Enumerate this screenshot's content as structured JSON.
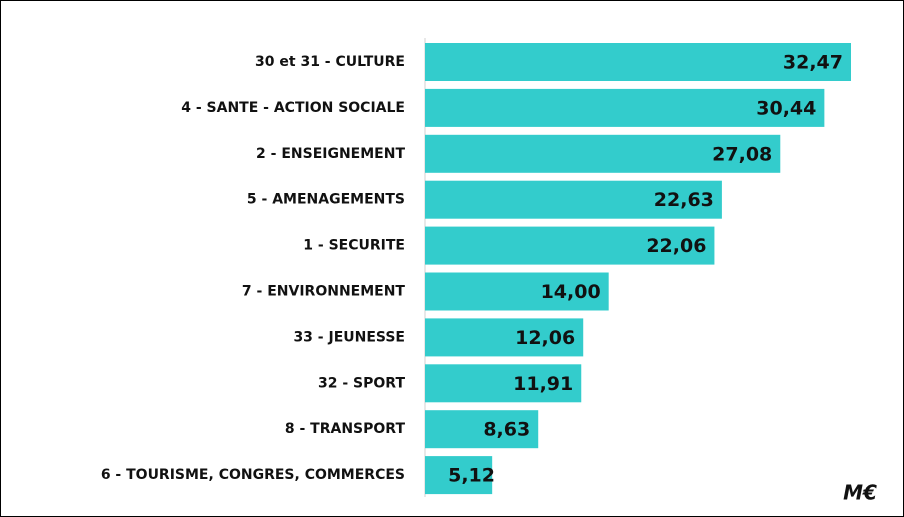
{
  "chart_data": {
    "type": "hbar",
    "categories": [
      "30 et 31 - CULTURE",
      "4 - SANTE - ACTION SOCIALE",
      "2 - ENSEIGNEMENT",
      "5 - AMENAGEMENTS",
      "1 - SECURITE",
      "7 - ENVIRONNEMENT",
      "33 - JEUNESSE",
      "32 - SPORT",
      "8 - TRANSPORT",
      "6 - TOURISME, CONGRES, COMMERCES"
    ],
    "values": [
      32.47,
      30.44,
      27.08,
      22.63,
      22.06,
      14.0,
      12.06,
      11.91,
      8.63,
      5.12
    ],
    "value_labels": [
      "32,47",
      "30,44",
      "27,08",
      "22,63",
      "22,06",
      "14,00",
      "12,06",
      "11,91",
      "8,63",
      "5,12"
    ],
    "color": "#33cccc",
    "annotation": "M€"
  }
}
